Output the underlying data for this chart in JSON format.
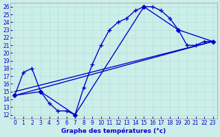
{
  "xlabel": "Graphe des températures (°c)",
  "bg_color": "#cceee8",
  "line_color": "#0000cc",
  "grid_color": "#aadddd",
  "xlim": [
    -0.5,
    23.5
  ],
  "ylim": [
    11.5,
    26.5
  ],
  "xticks": [
    0,
    1,
    2,
    3,
    4,
    5,
    6,
    7,
    8,
    9,
    10,
    11,
    12,
    13,
    14,
    15,
    16,
    17,
    18,
    19,
    20,
    21,
    22,
    23
  ],
  "yticks": [
    12,
    13,
    14,
    15,
    16,
    17,
    18,
    19,
    20,
    21,
    22,
    23,
    24,
    25,
    26
  ],
  "series": [
    {
      "x": [
        0,
        1,
        2,
        3,
        4,
        5,
        6,
        7,
        8,
        9,
        10,
        11,
        12,
        13,
        14,
        15,
        16,
        17,
        18,
        19,
        20,
        21,
        22,
        23
      ],
      "y": [
        14.5,
        17.5,
        18.0,
        15.0,
        13.5,
        12.5,
        12.5,
        12.0,
        15.5,
        18.5,
        21.0,
        23.0,
        24.0,
        24.5,
        25.5,
        26.0,
        26.0,
        25.5,
        24.5,
        23.0,
        21.0,
        21.0,
        21.5,
        21.5
      ],
      "marker": "+",
      "markersize": 4,
      "lw": 1.0
    },
    {
      "x": [
        0,
        3,
        7,
        15,
        19,
        23
      ],
      "y": [
        14.5,
        15.0,
        12.0,
        26.0,
        23.0,
        21.5
      ],
      "marker": "D",
      "markersize": 3,
      "lw": 1.0
    },
    {
      "x": [
        0,
        23
      ],
      "y": [
        14.5,
        21.5
      ],
      "marker": null,
      "markersize": 0,
      "lw": 1.0
    },
    {
      "x": [
        0,
        23
      ],
      "y": [
        15.0,
        21.5
      ],
      "marker": null,
      "markersize": 0,
      "lw": 1.0
    }
  ]
}
